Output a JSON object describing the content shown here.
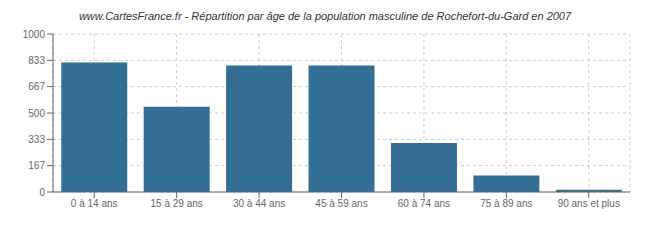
{
  "chart_data": {
    "type": "bar",
    "title": "www.CartesFrance.fr - Répartition par âge de la population masculine de Rochefort-du-Gard en 2007",
    "categories": [
      "0 à 14 ans",
      "15 à 29 ans",
      "30 à 44 ans",
      "45 à 59 ans",
      "60 à 74 ans",
      "75 à 89 ans",
      "90 ans et plus"
    ],
    "values": [
      820,
      540,
      800,
      800,
      310,
      105,
      15
    ],
    "color": "#336e96",
    "ylim": [
      0,
      1000
    ],
    "yticks": [
      0,
      167,
      333,
      500,
      667,
      833,
      1000
    ],
    "grid": true
  }
}
